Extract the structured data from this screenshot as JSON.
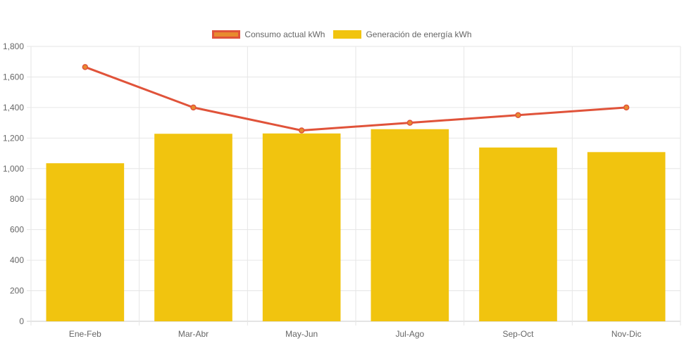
{
  "chart_data": {
    "type": "bar",
    "categories": [
      "Ene-Feb",
      "Mar-Abr",
      "May-Jun",
      "Jul-Ago",
      "Sep-Oct",
      "Nov-Dic"
    ],
    "series": [
      {
        "name": "Consumo actual kWh",
        "type": "line",
        "color": "#e0533a",
        "fill": "#e88b2e",
        "values": [
          1665,
          1400,
          1250,
          1300,
          1350,
          1400
        ]
      },
      {
        "name": "Generación de energía kWh",
        "type": "bar",
        "color": "#f1c40f",
        "values": [
          1035,
          1228,
          1230,
          1258,
          1138,
          1108
        ]
      }
    ],
    "ylim": [
      0,
      1800
    ],
    "yticks": [
      "0",
      "200",
      "400",
      "600",
      "800",
      "1,000",
      "1,200",
      "1,400",
      "1,600",
      "1,800"
    ],
    "grid": true,
    "legend_position": "top"
  }
}
